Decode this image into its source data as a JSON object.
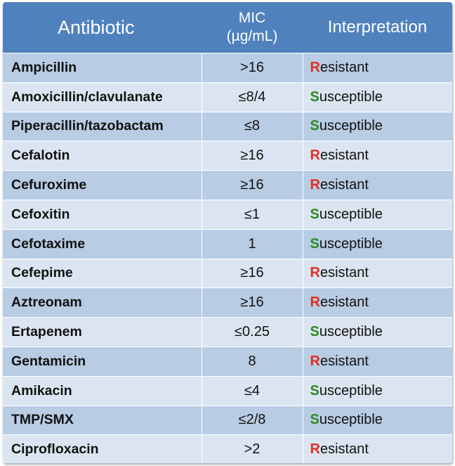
{
  "header": {
    "col_antibiotic": "Antibiotic",
    "col_mic_line1": "MIC",
    "col_mic_line2": "(µg/mL)",
    "col_interpretation": "Interpretation"
  },
  "colors": {
    "header_bg": "#4f81bd",
    "row_dark": "#b8cce4",
    "row_light": "#dbe5f1",
    "resistant": "#e03020",
    "susceptible": "#2e8b1f"
  },
  "rows": [
    {
      "antibiotic": "Ampicillin",
      "mic": ">16",
      "interp_initial": "R",
      "interp_rest": "esistant"
    },
    {
      "antibiotic": "Amoxicillin/clavulanate",
      "mic": "≤8/4",
      "interp_initial": "S",
      "interp_rest": "usceptible"
    },
    {
      "antibiotic": "Piperacillin/tazobactam",
      "mic": "≤8",
      "interp_initial": "S",
      "interp_rest": "usceptible"
    },
    {
      "antibiotic": "Cefalotin",
      "mic": "≥16",
      "interp_initial": "R",
      "interp_rest": "esistant"
    },
    {
      "antibiotic": "Cefuroxime",
      "mic": "≥16",
      "interp_initial": "R",
      "interp_rest": "esistant"
    },
    {
      "antibiotic": "Cefoxitin",
      "mic": "≤1",
      "interp_initial": "S",
      "interp_rest": "usceptible"
    },
    {
      "antibiotic": "Cefotaxime",
      "mic": "1",
      "interp_initial": "S",
      "interp_rest": "usceptible"
    },
    {
      "antibiotic": "Cefepime",
      "mic": "≥16",
      "interp_initial": "R",
      "interp_rest": "esistant"
    },
    {
      "antibiotic": "Aztreonam",
      "mic": "≥16",
      "interp_initial": "R",
      "interp_rest": "esistant"
    },
    {
      "antibiotic": "Ertapenem",
      "mic": "≤0.25",
      "interp_initial": "S",
      "interp_rest": "usceptible"
    },
    {
      "antibiotic": "Gentamicin",
      "mic": "8",
      "interp_initial": "R",
      "interp_rest": "esistant"
    },
    {
      "antibiotic": "Amikacin",
      "mic": "≤4",
      "interp_initial": "S",
      "interp_rest": "usceptible"
    },
    {
      "antibiotic": "TMP/SMX",
      "mic": "≤2/8",
      "interp_initial": "S",
      "interp_rest": "usceptible"
    },
    {
      "antibiotic": "Ciprofloxacin",
      "mic": ">2",
      "interp_initial": "R",
      "interp_rest": "esistant"
    }
  ]
}
